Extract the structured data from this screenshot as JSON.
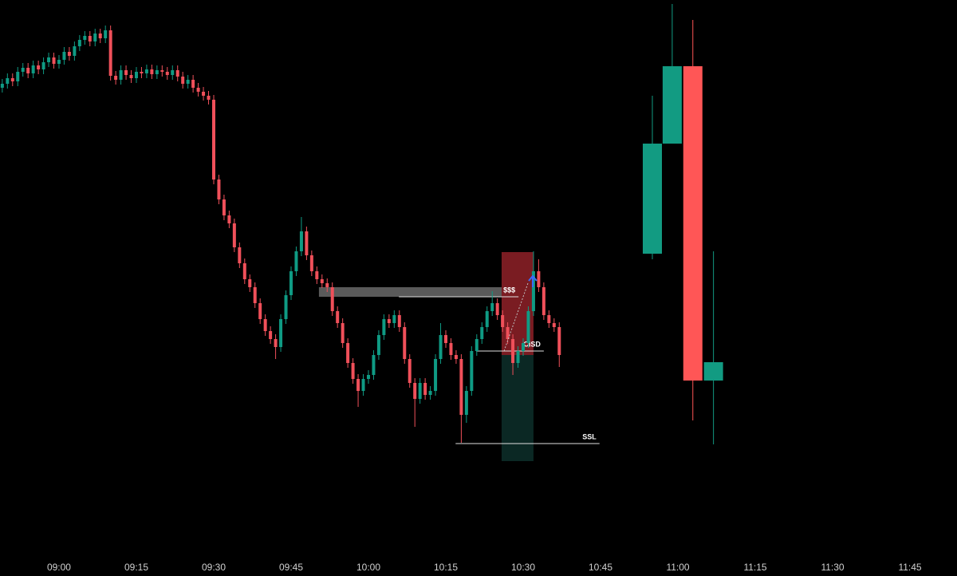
{
  "chart_data": {
    "type": "candlestick",
    "xlim": [
      528.56,
      714.12
    ],
    "ylim": [
      0,
      690
    ],
    "xticks": [
      {
        "value": 540,
        "label": "09:00"
      },
      {
        "value": 555,
        "label": "09:15"
      },
      {
        "value": 570,
        "label": "09:30"
      },
      {
        "value": 585,
        "label": "09:45"
      },
      {
        "value": 600,
        "label": "10:00"
      },
      {
        "value": 615,
        "label": "10:15"
      },
      {
        "value": 630,
        "label": "10:30"
      },
      {
        "value": 645,
        "label": "10:45"
      },
      {
        "value": 660,
        "label": "11:00"
      },
      {
        "value": 675,
        "label": "11:15"
      },
      {
        "value": 690,
        "label": "11:30"
      },
      {
        "value": 705,
        "label": "11:45"
      }
    ],
    "up_color": "#0f9b84",
    "down_color": "#f0505a",
    "x": [
      529,
      530,
      531,
      532,
      533,
      534,
      535,
      536,
      537,
      538,
      539,
      540,
      541,
      542,
      543,
      544,
      545,
      546,
      547,
      548,
      549,
      550,
      551,
      552,
      553,
      554,
      555,
      556,
      557,
      558,
      559,
      560,
      561,
      562,
      563,
      564,
      565,
      566,
      567,
      568,
      569,
      570,
      571,
      572,
      573,
      574,
      575,
      576,
      577,
      578,
      579,
      580,
      581,
      582,
      583,
      584,
      585,
      586,
      587,
      588,
      589,
      590,
      591,
      592,
      593,
      594,
      595,
      596,
      597,
      598,
      599,
      600,
      601,
      602,
      603,
      604,
      605,
      606,
      607,
      608,
      609,
      610,
      611,
      612,
      613,
      614,
      615,
      616,
      617,
      618,
      619,
      620,
      621,
      622,
      623,
      624,
      625,
      626,
      627,
      628,
      629,
      630,
      631,
      632,
      633,
      634,
      635,
      636,
      637
    ],
    "open": [
      580,
      585,
      592,
      588,
      600,
      605,
      598,
      608,
      603,
      612,
      618,
      610,
      615,
      625,
      620,
      632,
      640,
      645,
      638,
      648,
      642,
      652,
      595,
      590,
      602,
      596,
      592,
      600,
      598,
      603,
      597,
      602,
      600,
      596,
      602,
      594,
      585,
      590,
      580,
      575,
      570,
      565,
      465,
      440,
      420,
      410,
      380,
      360,
      340,
      330,
      310,
      290,
      275,
      265,
      255,
      290,
      320,
      350,
      375,
      400,
      370,
      350,
      340,
      335,
      330,
      300,
      285,
      260,
      235,
      215,
      200,
      215,
      220,
      245,
      270,
      290,
      285,
      295,
      280,
      240,
      210,
      190,
      210,
      195,
      200,
      240,
      270,
      260,
      245,
      240,
      170,
      200,
      250,
      265,
      280,
      300,
      310,
      295,
      280,
      265,
      235,
      250,
      260,
      300,
      350,
      330,
      295,
      285,
      280
    ],
    "high": [
      591,
      598,
      598,
      606,
      611,
      611,
      614,
      614,
      618,
      624,
      624,
      621,
      631,
      631,
      638,
      646,
      651,
      651,
      654,
      654,
      658,
      658,
      601,
      608,
      608,
      602,
      606,
      606,
      609,
      609,
      608,
      608,
      606,
      608,
      608,
      600,
      596,
      596,
      586,
      581,
      576,
      571,
      471,
      446,
      426,
      416,
      386,
      366,
      346,
      336,
      316,
      296,
      281,
      271,
      296,
      326,
      356,
      381,
      418,
      406,
      376,
      356,
      346,
      341,
      336,
      306,
      291,
      266,
      241,
      221,
      221,
      226,
      251,
      276,
      296,
      296,
      301,
      301,
      286,
      246,
      216,
      216,
      216,
      206,
      246,
      285,
      276,
      266,
      251,
      246,
      206,
      256,
      271,
      286,
      306,
      325,
      316,
      301,
      286,
      271,
      256,
      266,
      306,
      375,
      365,
      336,
      301,
      291,
      286
    ],
    "low": [
      574,
      579,
      582,
      582,
      594,
      592,
      592,
      597,
      597,
      606,
      604,
      604,
      609,
      614,
      614,
      626,
      634,
      632,
      632,
      636,
      636,
      589,
      584,
      584,
      590,
      586,
      586,
      592,
      592,
      591,
      591,
      594,
      590,
      590,
      588,
      579,
      579,
      574,
      569,
      564,
      559,
      459,
      434,
      414,
      404,
      374,
      354,
      334,
      324,
      304,
      284,
      269,
      259,
      240,
      249,
      284,
      314,
      344,
      369,
      364,
      344,
      334,
      329,
      324,
      294,
      279,
      254,
      229,
      209,
      180,
      194,
      209,
      214,
      239,
      264,
      279,
      279,
      274,
      234,
      204,
      155,
      184,
      189,
      189,
      194,
      234,
      254,
      239,
      234,
      135,
      160,
      194,
      244,
      259,
      274,
      294,
      289,
      274,
      259,
      220,
      229,
      244,
      254,
      294,
      324,
      289,
      279,
      274,
      230
    ],
    "close": [
      585,
      592,
      588,
      600,
      605,
      598,
      608,
      603,
      612,
      618,
      610,
      615,
      625,
      620,
      632,
      640,
      645,
      638,
      648,
      642,
      652,
      595,
      590,
      602,
      596,
      592,
      600,
      598,
      603,
      597,
      602,
      600,
      596,
      602,
      594,
      585,
      590,
      580,
      575,
      570,
      565,
      465,
      440,
      420,
      410,
      380,
      360,
      340,
      330,
      310,
      290,
      275,
      265,
      255,
      290,
      320,
      350,
      375,
      400,
      370,
      350,
      340,
      335,
      330,
      300,
      285,
      260,
      235,
      215,
      200,
      215,
      220,
      245,
      270,
      290,
      285,
      295,
      280,
      240,
      210,
      190,
      210,
      195,
      200,
      240,
      270,
      260,
      245,
      240,
      170,
      200,
      250,
      265,
      280,
      300,
      310,
      295,
      280,
      265,
      235,
      250,
      260,
      300,
      350,
      330,
      295,
      285,
      280,
      245
    ],
    "overlay": {
      "up_color": "#129b82",
      "down_color": "#ff5656",
      "x": [
        655.05,
        658.9,
        662.9,
        666.9
      ],
      "open": [
        372,
        510,
        607,
        213
      ],
      "high": [
        570,
        685,
        665,
        375
      ],
      "low": [
        365,
        510,
        163,
        133
      ],
      "close": [
        510,
        607,
        213,
        236
      ]
    },
    "zones": [
      {
        "x": [
          590.4,
          628.8
        ],
        "y": [
          318,
          330
        ],
        "color": "#5a5a5a"
      },
      {
        "x": [
          625.82,
          632.0
        ],
        "y": [
          245,
          374
        ],
        "color": "#7a1c22"
      },
      {
        "x": [
          625.82,
          632.0
        ],
        "y": [
          112,
          245
        ],
        "color": "#0b2824"
      }
    ],
    "levels": [
      {
        "label": "$$$",
        "value": 318,
        "x": [
          605.9,
          629.1
        ]
      },
      {
        "label": "CISD",
        "value": 250,
        "x": [
          620.9,
          634.0
        ]
      },
      {
        "label": "SSL",
        "value": 134,
        "x": [
          616.9,
          644.8
        ]
      }
    ]
  }
}
